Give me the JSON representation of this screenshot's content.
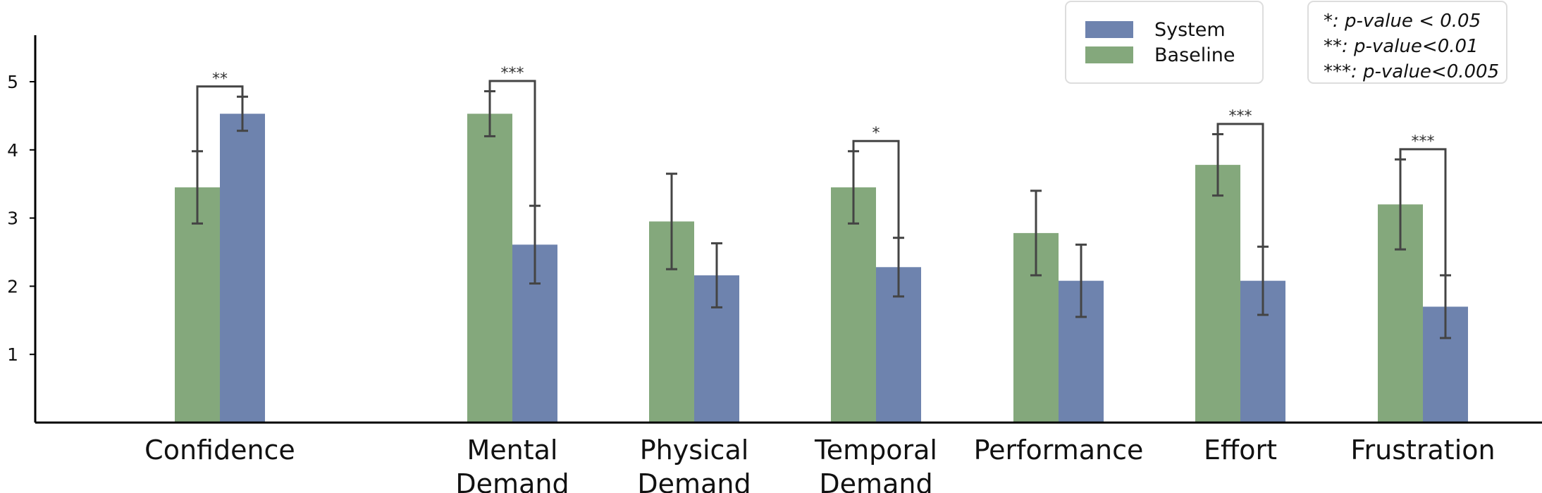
{
  "chart_data": {
    "type": "bar",
    "categories": [
      [
        "Confidence"
      ],
      [
        "Mental",
        "Demand"
      ],
      [
        "Physical",
        "Demand"
      ],
      [
        "Temporal",
        "Demand"
      ],
      [
        "Performance"
      ],
      [
        "Effort"
      ],
      [
        "Frustration"
      ]
    ],
    "series": [
      {
        "name": "Baseline",
        "color": "#84a87c",
        "values": [
          3.45,
          4.53,
          2.95,
          3.45,
          2.78,
          3.78,
          3.2
        ],
        "errors": [
          0.53,
          0.33,
          0.7,
          0.53,
          0.62,
          0.45,
          0.66
        ]
      },
      {
        "name": "System",
        "color": "#6e83ae",
        "values": [
          4.53,
          2.61,
          2.16,
          2.28,
          2.08,
          2.08,
          1.7
        ],
        "errors": [
          0.25,
          0.57,
          0.47,
          0.43,
          0.53,
          0.5,
          0.46
        ]
      }
    ],
    "significance": [
      "**",
      "***",
      "",
      "*",
      "",
      "***",
      "***"
    ],
    "yticks": [
      1,
      2,
      3,
      4,
      5
    ],
    "ylim": [
      0,
      5.7
    ],
    "legend": [
      "System",
      "Baseline"
    ],
    "legend_position": "top-right",
    "notes": [
      "*: p-value < 0.05",
      "**: p-value<0.01",
      "***: p-value<0.005"
    ]
  }
}
